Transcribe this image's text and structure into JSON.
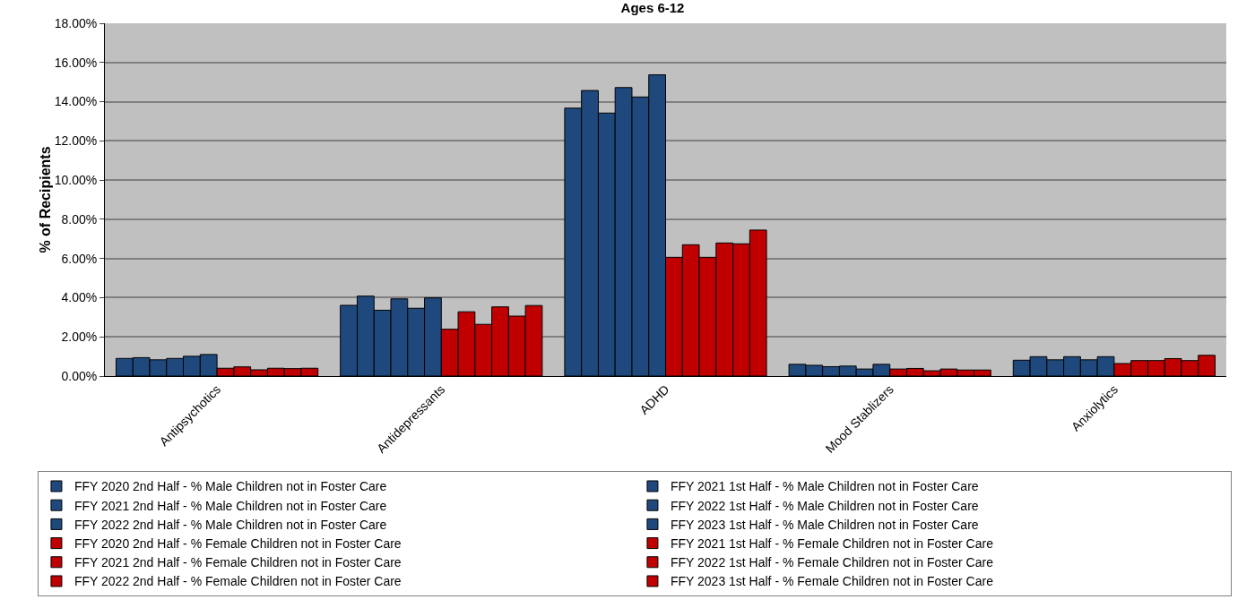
{
  "chart_data": {
    "type": "bar",
    "title": "Ages 6-12",
    "ylabel": "% of Recipients",
    "categories": [
      "Antipsychotics",
      "Antidepressants",
      "ADHD",
      "Mood Stablizers",
      "Anxiolytics"
    ],
    "series": [
      {
        "name": "FFY 2020 2nd Half - % Male Children not in Foster Care",
        "color": "#1f497d",
        "values": [
          0.9,
          3.61,
          13.67,
          0.6,
          0.81
        ]
      },
      {
        "name": "FFY 2021 1st Half - % Male Children not in Foster Care",
        "color": "#1f497d",
        "values": [
          0.94,
          4.08,
          14.57,
          0.55,
          0.99
        ]
      },
      {
        "name": "FFY 2021 2nd Half - % Male Children not in Foster Care",
        "color": "#1f497d",
        "values": [
          0.83,
          3.36,
          13.42,
          0.48,
          0.83
        ]
      },
      {
        "name": "FFY 2022 1st Half - % Male Children not in Foster Care",
        "color": "#1f497d",
        "values": [
          0.9,
          3.94,
          14.72,
          0.51,
          0.99
        ]
      },
      {
        "name": "FFY 2022 2nd Half - % Male Children not in Foster Care",
        "color": "#1f497d",
        "values": [
          1.01,
          3.46,
          14.24,
          0.36,
          0.83
        ]
      },
      {
        "name": "FFY 2023 1st Half - % Male Children not in Foster Care",
        "color": "#1f497d",
        "values": [
          1.1,
          3.99,
          15.37,
          0.6,
          0.99
        ]
      },
      {
        "name": "FFY 2020 2nd Half - % Female Children not in Foster Care",
        "color": "#c00000",
        "values": [
          0.4,
          2.39,
          6.06,
          0.36,
          0.64
        ]
      },
      {
        "name": "FFY 2021 1st Half - % Female Children not in Foster Care",
        "color": "#c00000",
        "values": [
          0.47,
          3.28,
          6.7,
          0.39,
          0.79
        ]
      },
      {
        "name": "FFY 2021 2nd Half - % Female Children not in Foster Care",
        "color": "#c00000",
        "values": [
          0.32,
          2.64,
          6.06,
          0.27,
          0.79
        ]
      },
      {
        "name": "FFY 2022 1st Half - % Female Children not in Foster Care",
        "color": "#c00000",
        "values": [
          0.4,
          3.53,
          6.79,
          0.36,
          0.89
        ]
      },
      {
        "name": "FFY 2022 2nd Half - % Female Children not in Foster Care",
        "color": "#c00000",
        "values": [
          0.38,
          3.06,
          6.75,
          0.31,
          0.79
        ]
      },
      {
        "name": "FFY 2023 1st Half - % Female Children not in Foster Care",
        "color": "#c00000",
        "values": [
          0.4,
          3.6,
          7.45,
          0.31,
          1.06
        ]
      }
    ],
    "ylim": [
      0,
      18
    ],
    "yticks": [
      {
        "value": 0,
        "label": "0.00%"
      },
      {
        "value": 2,
        "label": "2.00%"
      },
      {
        "value": 4,
        "label": "4.00%"
      },
      {
        "value": 6,
        "label": "6.00%"
      },
      {
        "value": 8,
        "label": "8.00%"
      },
      {
        "value": 10,
        "label": "10.00%"
      },
      {
        "value": 12,
        "label": "12.00%"
      },
      {
        "value": 14,
        "label": "14.00%"
      },
      {
        "value": 16,
        "label": "16.00%"
      },
      {
        "value": 18,
        "label": "18.00%"
      }
    ],
    "grid": "y",
    "legend": "bottom"
  }
}
